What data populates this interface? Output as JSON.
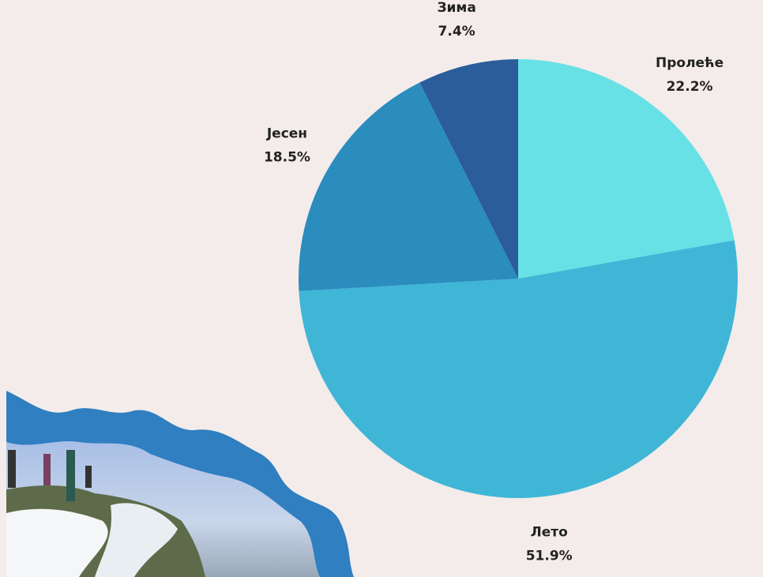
{
  "chart_data": {
    "type": "pie",
    "categories": [
      "Пролеће",
      "Лето",
      "Јесен",
      "Зима"
    ],
    "values": [
      22.2,
      51.9,
      18.5,
      7.4
    ],
    "value_labels": [
      "22.2%",
      "51.9%",
      "18.5%",
      "7.4%"
    ],
    "colors": [
      "#67e1e6",
      "#40b6d7",
      "#2b8cbe",
      "#2b5d9b"
    ]
  }
}
